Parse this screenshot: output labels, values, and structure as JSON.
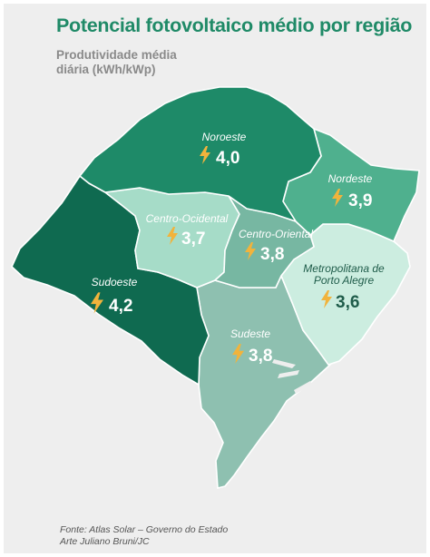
{
  "header": {
    "title": "Potencial fotovoltaico médio por região",
    "subtitle_line1": "Produtividade média",
    "subtitle_line2": "diária (kWh/kWp)"
  },
  "colors": {
    "background": "#eeeeee",
    "title": "#1f8a67",
    "icon": "#f1b33c"
  },
  "regions": [
    {
      "name": "Noroeste",
      "value": "4,0",
      "color": "#1e8a68",
      "text_color": "#ffffff"
    },
    {
      "name": "Nordeste",
      "value": "3,9",
      "color": "#4fb08e",
      "text_color": "#ffffff"
    },
    {
      "name": "Centro-Ocidental",
      "value": "3,7",
      "color": "#a6dcc8",
      "text_color": "#ffffff"
    },
    {
      "name": "Centro-Oriental",
      "value": "3,8",
      "color": "#77b7a2",
      "text_color": "#ffffff"
    },
    {
      "name": "Sudoeste",
      "value": "4,2",
      "color": "#0f6a50",
      "text_color": "#ffffff"
    },
    {
      "name": "Metropolitana de",
      "name2": "Porto Alegre",
      "value": "3,6",
      "color": "#ccede0",
      "text_color": "#1f5c4a"
    },
    {
      "name": "Sudeste",
      "value": "3,8",
      "color": "#8ec0b0",
      "text_color": "#ffffff"
    }
  ],
  "icon": "lightning-bolt-icon",
  "footer": {
    "source": "Fonte: Atlas Solar – Governo do Estado",
    "credit": "Arte Juliano Bruni/JC"
  }
}
